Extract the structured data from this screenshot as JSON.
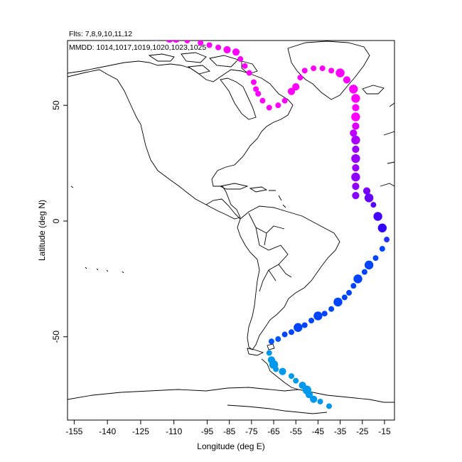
{
  "header": {
    "flights_line": "Flts: 7,8,9,10,11,12",
    "dates_line": "MMDD: 1014,1017,1019,1020,1023,1025"
  },
  "axes": {
    "xlabel": "Longitude (deg E)",
    "ylabel": "Latitude (deg N)",
    "xlim": [
      -158,
      -10.5
    ],
    "ylim": [
      -86,
      78
    ],
    "xticks": [
      -155,
      -140,
      -125,
      -110,
      -95,
      -85,
      -75,
      -65,
      -55,
      -45,
      -35,
      -25,
      -15
    ],
    "yticks": [
      50,
      0,
      -50
    ]
  },
  "chart_data": {
    "type": "scatter",
    "title": "",
    "xlabel": "Longitude (deg E)",
    "ylabel": "Latitude (deg N)",
    "xlim": [
      -158,
      -10.5
    ],
    "ylim": [
      -86,
      78
    ],
    "grid": false,
    "color_scale": [
      "#ff00ff",
      "#8800ee",
      "#0044ff",
      "#0099ee"
    ],
    "points": [
      {
        "lon": -118,
        "lat": 79,
        "s": 2,
        "c": "#ff00ff"
      },
      {
        "lon": -112,
        "lat": 79,
        "s": 4,
        "c": "#ff00ff"
      },
      {
        "lon": -109,
        "lat": 79,
        "s": 4,
        "c": "#ff00ff"
      },
      {
        "lon": -104,
        "lat": 78,
        "s": 2,
        "c": "#ff00ff"
      },
      {
        "lon": -98,
        "lat": 77,
        "s": 2,
        "c": "#ff00ff"
      },
      {
        "lon": -94,
        "lat": 76,
        "s": 2,
        "c": "#ff00ff"
      },
      {
        "lon": -90,
        "lat": 75,
        "s": 2,
        "c": "#ff00ff"
      },
      {
        "lon": -86,
        "lat": 74,
        "s": 3,
        "c": "#ff00ff"
      },
      {
        "lon": -82,
        "lat": 73,
        "s": 3,
        "c": "#ff00ff"
      },
      {
        "lon": -80,
        "lat": 70,
        "s": 2,
        "c": "#ff00ff"
      },
      {
        "lon": -78,
        "lat": 67,
        "s": 2,
        "c": "#ff00ff"
      },
      {
        "lon": -76,
        "lat": 64,
        "s": 2,
        "c": "#ff00ff"
      },
      {
        "lon": -74,
        "lat": 60,
        "s": 2,
        "c": "#ff00ff"
      },
      {
        "lon": -73,
        "lat": 57,
        "s": 2,
        "c": "#ff00ff"
      },
      {
        "lon": -72,
        "lat": 55,
        "s": 2,
        "c": "#ff00ff"
      },
      {
        "lon": -70,
        "lat": 52,
        "s": 2,
        "c": "#ff00ff"
      },
      {
        "lon": -67,
        "lat": 49,
        "s": 2,
        "c": "#ff00ff"
      },
      {
        "lon": -63,
        "lat": 50,
        "s": 2,
        "c": "#ff00ff"
      },
      {
        "lon": -60,
        "lat": 52,
        "s": 2,
        "c": "#ff00ff"
      },
      {
        "lon": -57,
        "lat": 56,
        "s": 3,
        "c": "#ff00ff"
      },
      {
        "lon": -55,
        "lat": 58,
        "s": 3,
        "c": "#ff00ff"
      },
      {
        "lon": -53,
        "lat": 62,
        "s": 2,
        "c": "#ff00ff"
      },
      {
        "lon": -51,
        "lat": 65,
        "s": 2,
        "c": "#ff00ff"
      },
      {
        "lon": -47,
        "lat": 66,
        "s": 2,
        "c": "#ff00ff"
      },
      {
        "lon": -43,
        "lat": 66,
        "s": 2,
        "c": "#ff00ff"
      },
      {
        "lon": -39,
        "lat": 65,
        "s": 2,
        "c": "#ff00ff"
      },
      {
        "lon": -35,
        "lat": 64,
        "s": 4,
        "c": "#ff00ff"
      },
      {
        "lon": -32,
        "lat": 61,
        "s": 3,
        "c": "#ff00ff"
      },
      {
        "lon": -29,
        "lat": 57,
        "s": 4,
        "c": "#ff00ff"
      },
      {
        "lon": -28,
        "lat": 53,
        "s": 4,
        "c": "#ff00ff"
      },
      {
        "lon": -28,
        "lat": 49,
        "s": 3,
        "c": "#ff00ff"
      },
      {
        "lon": -28,
        "lat": 45,
        "s": 4,
        "c": "#ff00ff"
      },
      {
        "lon": -28,
        "lat": 41,
        "s": 3,
        "c": "#dd00ff"
      },
      {
        "lon": -29,
        "lat": 38,
        "s": 3,
        "c": "#bb00ff"
      },
      {
        "lon": -28,
        "lat": 35,
        "s": 4,
        "c": "#aa00ff"
      },
      {
        "lon": -28,
        "lat": 31,
        "s": 3,
        "c": "#9900ff"
      },
      {
        "lon": -28,
        "lat": 27,
        "s": 4,
        "c": "#9900ff"
      },
      {
        "lon": -28,
        "lat": 23,
        "s": 3,
        "c": "#9900ff"
      },
      {
        "lon": -28,
        "lat": 19,
        "s": 4,
        "c": "#9000ff"
      },
      {
        "lon": -28,
        "lat": 15,
        "s": 3,
        "c": "#9000ff"
      },
      {
        "lon": -28,
        "lat": 11,
        "s": 3,
        "c": "#8800ff"
      },
      {
        "lon": -23,
        "lat": 13,
        "s": 3,
        "c": "#7700ff"
      },
      {
        "lon": -22,
        "lat": 10,
        "s": 4,
        "c": "#6600ff"
      },
      {
        "lon": -20,
        "lat": 7,
        "s": 2,
        "c": "#5500ff"
      },
      {
        "lon": -18,
        "lat": 2,
        "s": 4,
        "c": "#4400ff"
      },
      {
        "lon": -16,
        "lat": -3,
        "s": 4,
        "c": "#3300ff"
      },
      {
        "lon": -14,
        "lat": -8,
        "s": 2,
        "c": "#2233ff"
      },
      {
        "lon": -16,
        "lat": -12,
        "s": 2,
        "c": "#0044ff"
      },
      {
        "lon": -19,
        "lat": -16,
        "s": 2,
        "c": "#0044ff"
      },
      {
        "lon": -22,
        "lat": -19,
        "s": 4,
        "c": "#0044ff"
      },
      {
        "lon": -24,
        "lat": -22,
        "s": 2,
        "c": "#0044ff"
      },
      {
        "lon": -27,
        "lat": -25,
        "s": 4,
        "c": "#0044ff"
      },
      {
        "lon": -29,
        "lat": -28,
        "s": 2,
        "c": "#0044ff"
      },
      {
        "lon": -31,
        "lat": -31,
        "s": 2,
        "c": "#0044ff"
      },
      {
        "lon": -33,
        "lat": -33,
        "s": 2,
        "c": "#0044ff"
      },
      {
        "lon": -36,
        "lat": -35,
        "s": 4,
        "c": "#0044ff"
      },
      {
        "lon": -39,
        "lat": -38,
        "s": 2,
        "c": "#0044ff"
      },
      {
        "lon": -42,
        "lat": -40,
        "s": 2,
        "c": "#0044ff"
      },
      {
        "lon": -45,
        "lat": -41,
        "s": 4,
        "c": "#0044ff"
      },
      {
        "lon": -48,
        "lat": -43,
        "s": 2,
        "c": "#0044ff"
      },
      {
        "lon": -51,
        "lat": -45,
        "s": 2,
        "c": "#0044ff"
      },
      {
        "lon": -54,
        "lat": -46,
        "s": 4,
        "c": "#0044ff"
      },
      {
        "lon": -57,
        "lat": -48,
        "s": 2,
        "c": "#0044ff"
      },
      {
        "lon": -60,
        "lat": -49,
        "s": 2,
        "c": "#0044ff"
      },
      {
        "lon": -63,
        "lat": -51,
        "s": 2,
        "c": "#0055ff"
      },
      {
        "lon": -66,
        "lat": -52,
        "s": 2,
        "c": "#0055ff"
      },
      {
        "lon": -67,
        "lat": -57,
        "s": 2,
        "c": "#0099ee"
      },
      {
        "lon": -66,
        "lat": -60,
        "s": 3,
        "c": "#0099ee"
      },
      {
        "lon": -65,
        "lat": -62,
        "s": 4,
        "c": "#0099ee"
      },
      {
        "lon": -64,
        "lat": -64,
        "s": 2,
        "c": "#0099ee"
      },
      {
        "lon": -61,
        "lat": -65,
        "s": 3,
        "c": "#0099ee"
      },
      {
        "lon": -57,
        "lat": -67,
        "s": 2,
        "c": "#0099ee"
      },
      {
        "lon": -55,
        "lat": -69,
        "s": 2,
        "c": "#0099ee"
      },
      {
        "lon": -52,
        "lat": -71,
        "s": 3,
        "c": "#0099ee"
      },
      {
        "lon": -50,
        "lat": -73,
        "s": 4,
        "c": "#0099ee"
      },
      {
        "lon": -49,
        "lat": -75,
        "s": 3,
        "c": "#0099ee"
      },
      {
        "lon": -47,
        "lat": -77,
        "s": 3,
        "c": "#0099ee"
      },
      {
        "lon": -44,
        "lat": -78,
        "s": 2,
        "c": "#0099ee"
      },
      {
        "lon": -40,
        "lat": -80,
        "s": 2,
        "c": "#0099ee"
      }
    ]
  }
}
